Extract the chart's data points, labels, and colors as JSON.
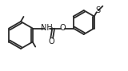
{
  "bg_color": "#ffffff",
  "bond_color": "#2a2a2a",
  "text_color": "#1a1a1a",
  "line_width": 1.3,
  "font_size": 6.5,
  "fig_width": 1.6,
  "fig_height": 0.89,
  "dpi": 100,
  "xlim": [
    0,
    160
  ],
  "ylim": [
    0,
    89
  ]
}
